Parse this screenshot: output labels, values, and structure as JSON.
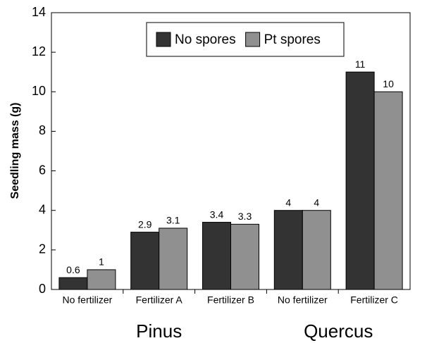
{
  "chart_data": {
    "type": "bar",
    "ylabel": "Seedling mass (g)",
    "categories": [
      "No fertilizer",
      "Fertilizer A",
      "Fertilizer B",
      "No fertilizer",
      "Fertilizer C"
    ],
    "group_labels": [
      "Pinus",
      "Quercus"
    ],
    "series": [
      {
        "name": "No spores",
        "color": "#333333",
        "values": [
          0.6,
          2.9,
          3.4,
          4,
          11
        ]
      },
      {
        "name": "Pt spores",
        "color": "#909090",
        "values": [
          1,
          3.1,
          3.3,
          4,
          10
        ]
      }
    ],
    "ylim": [
      0,
      14
    ],
    "yticks": [
      0,
      2,
      4,
      6,
      8,
      10,
      12,
      14
    ],
    "legend": "upper center"
  }
}
